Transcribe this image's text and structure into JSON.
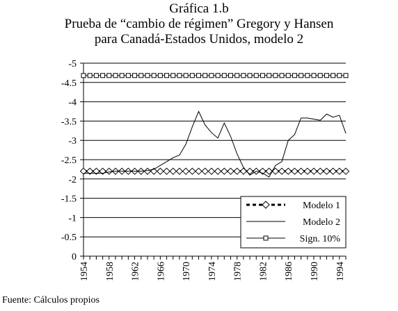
{
  "figure": {
    "title_line1": "Gráfica 1.b",
    "title_line2": "Prueba de “cambio de régimen” Gregory y Hansen",
    "title_line3": "para Canadá-Estados Unidos, modelo 2",
    "source": "Fuente: Cálculos propios"
  },
  "chart_data": {
    "type": "line",
    "title": "Gráfica 1.b Prueba de “cambio de régimen” Gregory y Hansen para Canadá-Estados Unidos, modelo 2",
    "xlabel": "",
    "ylabel": "",
    "y_axis_inverted": true,
    "ylim": [
      0,
      -5
    ],
    "yticks": [
      0,
      -0.5,
      -1,
      -1.5,
      -2,
      -2.5,
      -3,
      -3.5,
      -4,
      -4.5,
      -5
    ],
    "ytick_labels": [
      "0",
      "-0.5",
      "-1",
      "-1.5",
      "-2",
      "-2.5",
      "-3",
      "-3.5",
      "-4",
      "-4.5",
      "-5"
    ],
    "xticks": [
      1954,
      1958,
      1962,
      1966,
      1970,
      1974,
      1978,
      1982,
      1986,
      1990,
      1994
    ],
    "xtick_labels": [
      "1954",
      "1958",
      "1962",
      "1966",
      "1970",
      "1974",
      "1978",
      "1982",
      "1986",
      "1990",
      "1994"
    ],
    "xlim": [
      1954,
      1995
    ],
    "grid": "horizontal",
    "legend_position": "bottom-right",
    "series": [
      {
        "name": "Modelo 1",
        "style": "dashed-diamond",
        "x": [
          1954,
          1955,
          1956,
          1957,
          1958,
          1959,
          1960,
          1961,
          1962,
          1963,
          1964,
          1965,
          1966,
          1967,
          1968,
          1969,
          1970,
          1971,
          1972,
          1973,
          1974,
          1975,
          1976,
          1977,
          1978,
          1979,
          1980,
          1981,
          1982,
          1983,
          1984,
          1985,
          1986,
          1987,
          1988,
          1989,
          1990,
          1991,
          1992,
          1993,
          1994,
          1995
        ],
        "values": [
          -2.2,
          -2.2,
          -2.2,
          -2.2,
          -2.2,
          -2.2,
          -2.2,
          -2.2,
          -2.2,
          -2.2,
          -2.2,
          -2.2,
          -2.2,
          -2.2,
          -2.2,
          -2.2,
          -2.2,
          -2.2,
          -2.2,
          -2.2,
          -2.2,
          -2.2,
          -2.2,
          -2.2,
          -2.2,
          -2.2,
          -2.2,
          -2.2,
          -2.2,
          -2.2,
          -2.2,
          -2.2,
          -2.2,
          -2.2,
          -2.2,
          -2.2,
          -2.2,
          -2.2,
          -2.2,
          -2.2,
          -2.2,
          -2.2
        ]
      },
      {
        "name": "Modelo 2",
        "style": "solid",
        "x": [
          1954,
          1955,
          1956,
          1957,
          1958,
          1959,
          1960,
          1961,
          1962,
          1963,
          1964,
          1965,
          1966,
          1967,
          1968,
          1969,
          1970,
          1971,
          1972,
          1973,
          1974,
          1975,
          1976,
          1977,
          1978,
          1979,
          1980,
          1981,
          1982,
          1983,
          1984,
          1985,
          1986,
          1987,
          1988,
          1989,
          1990,
          1991,
          1992,
          1993,
          1994,
          1995
        ],
        "values": [
          -2.15,
          -2.15,
          -2.15,
          -2.15,
          -2.18,
          -2.2,
          -2.2,
          -2.2,
          -2.2,
          -2.2,
          -2.22,
          -2.25,
          -2.35,
          -2.45,
          -2.55,
          -2.62,
          -2.9,
          -3.35,
          -3.75,
          -3.4,
          -3.2,
          -3.06,
          -3.45,
          -3.1,
          -2.65,
          -2.3,
          -2.1,
          -2.2,
          -2.15,
          -2.05,
          -2.35,
          -2.45,
          -3.0,
          -3.15,
          -3.58,
          -3.58,
          -3.55,
          -3.52,
          -3.68,
          -3.6,
          -3.65,
          -3.18
        ]
      },
      {
        "name": "Sign. 10%",
        "style": "solid-square",
        "x": [
          1954,
          1955,
          1956,
          1957,
          1958,
          1959,
          1960,
          1961,
          1962,
          1963,
          1964,
          1965,
          1966,
          1967,
          1968,
          1969,
          1970,
          1971,
          1972,
          1973,
          1974,
          1975,
          1976,
          1977,
          1978,
          1979,
          1980,
          1981,
          1982,
          1983,
          1984,
          1985,
          1986,
          1987,
          1988,
          1989,
          1990,
          1991,
          1992,
          1993,
          1994,
          1995
        ],
        "values": [
          -4.68,
          -4.68,
          -4.68,
          -4.68,
          -4.68,
          -4.68,
          -4.68,
          -4.68,
          -4.68,
          -4.68,
          -4.68,
          -4.68,
          -4.68,
          -4.68,
          -4.68,
          -4.68,
          -4.68,
          -4.68,
          -4.68,
          -4.68,
          -4.68,
          -4.68,
          -4.68,
          -4.68,
          -4.68,
          -4.68,
          -4.68,
          -4.68,
          -4.68,
          -4.68,
          -4.68,
          -4.68,
          -4.68,
          -4.68,
          -4.68,
          -4.68,
          -4.68,
          -4.68,
          -4.68,
          -4.68,
          -4.68,
          -4.68
        ]
      }
    ],
    "colors": {
      "line": "#000000",
      "grid": "#000000",
      "background": "#ffffff"
    }
  }
}
